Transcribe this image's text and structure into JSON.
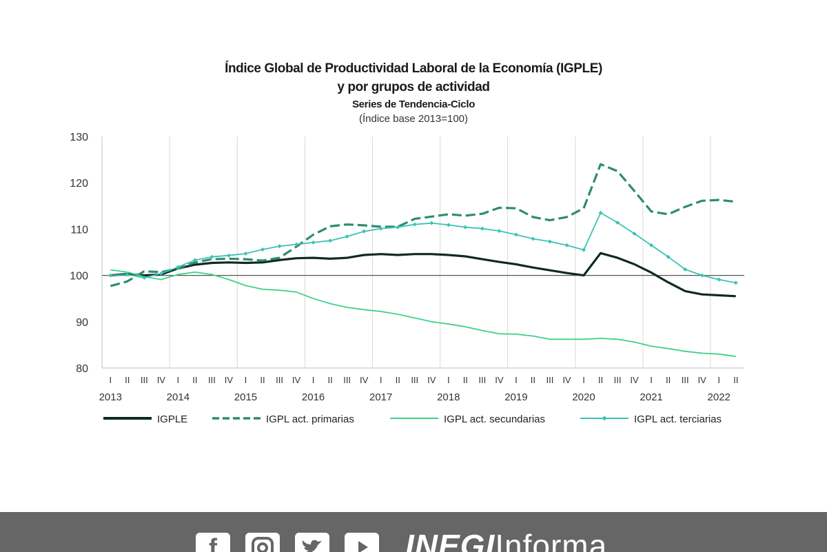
{
  "chart_data": {
    "type": "line",
    "title": "Índice Global de Productividad Laboral de la Economía (IGPLE)",
    "title2": "y por grupos de actividad",
    "subtitle": "Series de Tendencia-Ciclo",
    "units": "(Índice base 2013=100)",
    "ylim": [
      80,
      130
    ],
    "yticks": [
      80,
      90,
      100,
      110,
      120,
      130
    ],
    "reference_line": 100,
    "grid": "vertical at year boundaries",
    "legend_position": "bottom",
    "quarter_labels": [
      "I",
      "II",
      "III",
      "IV"
    ],
    "years": [
      "2013",
      "2014",
      "2015",
      "2016",
      "2017",
      "2018",
      "2019",
      "2020",
      "2021",
      "2022"
    ],
    "x": [
      "2013-I",
      "2013-II",
      "2013-III",
      "2013-IV",
      "2014-I",
      "2014-II",
      "2014-III",
      "2014-IV",
      "2015-I",
      "2015-II",
      "2015-III",
      "2015-IV",
      "2016-I",
      "2016-II",
      "2016-III",
      "2016-IV",
      "2017-I",
      "2017-II",
      "2017-III",
      "2017-IV",
      "2018-I",
      "2018-II",
      "2018-III",
      "2018-IV",
      "2019-I",
      "2019-II",
      "2019-III",
      "2019-IV",
      "2020-I",
      "2020-II",
      "2020-III",
      "2020-IV",
      "2021-I",
      "2021-II",
      "2021-III",
      "2021-IV",
      "2022-I",
      "2022-II"
    ],
    "series": [
      {
        "name": "IGPLE",
        "color": "#0f2a22",
        "style": "solid-thick",
        "values": [
          100.0,
          100.3,
          100.0,
          100.2,
          101.5,
          102.3,
          102.7,
          102.8,
          102.7,
          102.8,
          103.3,
          103.7,
          103.8,
          103.6,
          103.8,
          104.4,
          104.6,
          104.4,
          104.6,
          104.6,
          104.4,
          104.1,
          103.5,
          102.9,
          102.4,
          101.7,
          101.1,
          100.5,
          100.0,
          104.8,
          103.8,
          102.4,
          100.6,
          98.5,
          96.6,
          95.9,
          95.7,
          95.5
        ]
      },
      {
        "name": "IGPL act. primarias",
        "color": "#2e8b6e",
        "style": "dashed",
        "values": [
          97.7,
          98.7,
          100.9,
          100.7,
          101.5,
          102.8,
          103.5,
          103.6,
          103.5,
          103.2,
          103.8,
          106.2,
          108.8,
          110.6,
          111.0,
          110.8,
          110.5,
          110.5,
          112.2,
          112.7,
          113.2,
          112.9,
          113.3,
          114.6,
          114.5,
          112.6,
          111.9,
          112.6,
          114.5,
          124.0,
          122.5,
          118.2,
          113.8,
          113.2,
          114.8,
          116.1,
          116.3,
          115.9
        ]
      },
      {
        "name": "IGPL act. secundarias",
        "color": "#3fd08a",
        "style": "solid",
        "values": [
          101.2,
          100.7,
          99.7,
          99.1,
          100.2,
          100.7,
          100.2,
          99.1,
          97.8,
          97.0,
          96.8,
          96.4,
          95.0,
          93.9,
          93.1,
          92.6,
          92.2,
          91.6,
          90.8,
          90.0,
          89.5,
          88.9,
          88.1,
          87.4,
          87.3,
          86.9,
          86.2,
          86.2,
          86.2,
          86.4,
          86.2,
          85.6,
          84.7,
          84.2,
          83.6,
          83.2,
          83.0,
          82.5
        ]
      },
      {
        "name": "IGPL act. terciarias",
        "color": "#3cc2b4",
        "style": "solid-diamond",
        "values": [
          100.0,
          100.2,
          99.5,
          100.4,
          101.8,
          103.3,
          104.0,
          104.3,
          104.7,
          105.6,
          106.3,
          106.7,
          107.1,
          107.5,
          108.4,
          109.5,
          110.1,
          110.4,
          111.0,
          111.3,
          110.9,
          110.4,
          110.1,
          109.6,
          108.8,
          107.9,
          107.3,
          106.5,
          105.5,
          113.5,
          111.4,
          109.0,
          106.5,
          104.0,
          101.3,
          100.0,
          99.1,
          98.4
        ]
      }
    ]
  },
  "footer": {
    "social_icons": [
      "facebook-icon",
      "instagram-icon",
      "twitter-icon",
      "youtube-icon"
    ],
    "brand_bold": "INEGI",
    "brand_light": "Informa"
  }
}
